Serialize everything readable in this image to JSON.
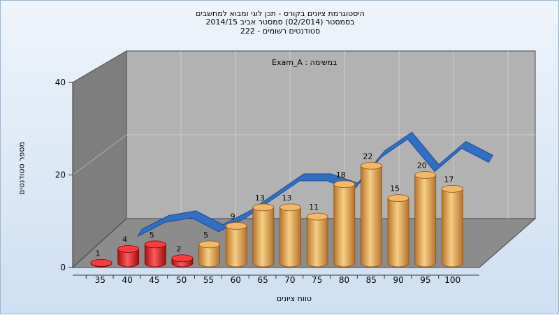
{
  "chart_data": {
    "type": "bar",
    "title_lines": [
      "היסטוגרמת ציונים בקורס - תכן לוגי ומבוא למחשבים",
      "בסמסטר  (02/2014)  סמסטר אביב 2014/15",
      "סטודנטים רשומים - 222"
    ],
    "annotation": "Exam_A : במשימה",
    "xlabel": "טווח ציונים",
    "ylabel": "מספר סטודנטים",
    "categories": [
      "35",
      "40",
      "45",
      "50",
      "55",
      "60",
      "65",
      "70",
      "75",
      "80",
      "85",
      "90",
      "95",
      "100"
    ],
    "values": [
      1,
      4,
      5,
      2,
      5,
      9,
      13,
      13,
      11,
      18,
      22,
      15,
      20,
      17
    ],
    "bar_colors": [
      "red",
      "red",
      "red",
      "red",
      "gold",
      "gold",
      "gold",
      "gold",
      "gold",
      "gold",
      "gold",
      "gold",
      "gold",
      "gold"
    ],
    "y_ticks": [
      0,
      20,
      40
    ],
    "ylim": [
      0,
      40
    ],
    "trend_line": true,
    "grid": true,
    "colors": {
      "red": "#e02020",
      "gold": "#e3a24a",
      "trend": "#2f6fc4",
      "back_wall": "#b2b2b2",
      "side_wall": "#7e7e7e"
    }
  }
}
